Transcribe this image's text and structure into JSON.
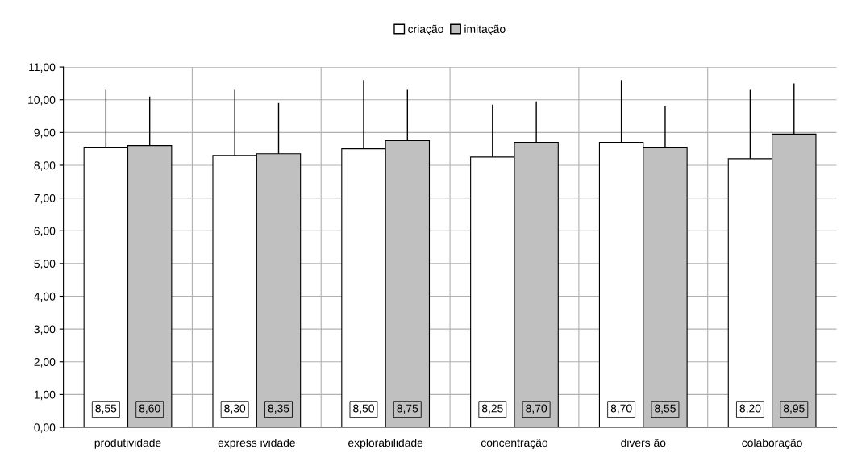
{
  "chart_data": {
    "type": "bar",
    "categories": [
      "produtividade",
      "express ividade",
      "explorabilidade",
      "concentração",
      "divers ão",
      "colaboração"
    ],
    "series": [
      {
        "name": "criação",
        "color": "#ffffff",
        "values": [
          8.55,
          8.3,
          8.5,
          8.25,
          8.7,
          8.2
        ],
        "errors": [
          [
            8.55,
            10.3
          ],
          [
            8.3,
            10.3
          ],
          [
            8.5,
            10.6
          ],
          [
            8.25,
            9.85
          ],
          [
            8.7,
            10.6
          ],
          [
            8.2,
            10.3
          ]
        ],
        "value_labels": [
          "8,55",
          "8,30",
          "8,50",
          "8,25",
          "8,70",
          "8,20"
        ]
      },
      {
        "name": "imitação",
        "color": "#c0c0c0",
        "values": [
          8.6,
          8.35,
          8.75,
          8.7,
          8.55,
          8.95
        ],
        "errors": [
          [
            8.6,
            10.1
          ],
          [
            8.35,
            9.9
          ],
          [
            8.75,
            10.3
          ],
          [
            8.7,
            9.95
          ],
          [
            8.55,
            9.8
          ],
          [
            8.95,
            10.5
          ]
        ],
        "value_labels": [
          "8,60",
          "8,35",
          "8,75",
          "8,70",
          "8,55",
          "8,95"
        ]
      }
    ],
    "ylim": [
      0,
      11
    ],
    "yticks": [
      {
        "value": 0,
        "label": "0,00"
      },
      {
        "value": 1,
        "label": "1,00"
      },
      {
        "value": 2,
        "label": "2,00"
      },
      {
        "value": 3,
        "label": "3,00"
      },
      {
        "value": 4,
        "label": "4,00"
      },
      {
        "value": 5,
        "label": "5,00"
      },
      {
        "value": 6,
        "label": "6,00"
      },
      {
        "value": 7,
        "label": "7,00"
      },
      {
        "value": 8,
        "label": "8,00"
      },
      {
        "value": 9,
        "label": "9,00"
      },
      {
        "value": 10,
        "label": "10,00"
      },
      {
        "value": 11,
        "label": "11,00"
      }
    ],
    "grid": true,
    "legend": "top"
  }
}
